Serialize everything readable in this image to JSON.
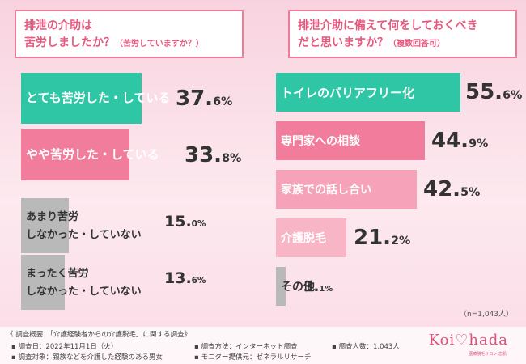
{
  "chart_data": [
    {
      "type": "bar",
      "title": "排泄の介助は苦労しましたか？",
      "subtitle": "（苦労していますか？）",
      "categories": [
        "とても苦労した・している",
        "やや苦労した・している",
        "あまり苦労しなかった・していない",
        "まったく苦労しなかった・していない"
      ],
      "values": [
        37.6,
        33.8,
        15.0,
        13.6
      ],
      "unit": "%"
    },
    {
      "type": "bar",
      "title": "排泄介助に備えて何をしておくべきだと思いますか？",
      "subtitle": "（複数回答可）",
      "categories": [
        "トイレのバリアフリー化",
        "専門家への相談",
        "家族での話し合い",
        "介護脱毛",
        "その他"
      ],
      "values": [
        55.6,
        44.9,
        42.5,
        21.2,
        3.1
      ],
      "unit": "%"
    }
  ],
  "left_question": {
    "line1": "排泄の介助は",
    "line2": "苦労しましたか？",
    "sub": "（苦労していますか？）"
  },
  "right_question": {
    "line1": "排泄介助に備えて何をしておくべき",
    "line2": "だと思いますか？",
    "sub": "（複数回答可）"
  },
  "left_labels": [
    {
      "l1": "とても苦労した・している",
      "l2": ""
    },
    {
      "l1": "やや苦労した・している",
      "l2": ""
    },
    {
      "l1": "あまり苦労",
      "l2": "しなかった・していない"
    },
    {
      "l1": "まったく苦労",
      "l2": "しなかった・していない"
    }
  ],
  "sample_note": "（n=1,043人）",
  "footer": {
    "overview": "《 調査概要：「介護経験者からの介護脱毛」に関する調査》",
    "date": "▪ 調査日：2022年11月1日（火）",
    "method": "▪ 調査方法：インターネット調査",
    "count": "▪ 調査人数：1,043人",
    "target": "▪ 調査対象：親族などを介護した経験のある男女",
    "provider": "▪ モニター提供元：ゼネラルリサーチ",
    "logo": "Koi♡hada",
    "logo_sub": "医療脱毛サロン 恋肌"
  },
  "colors": {
    "teal": "#2ec6a5",
    "pink": "#f27c9b",
    "gray": "#b9b9b9",
    "text_white": "#ffffff",
    "text_dark": "#333333"
  }
}
